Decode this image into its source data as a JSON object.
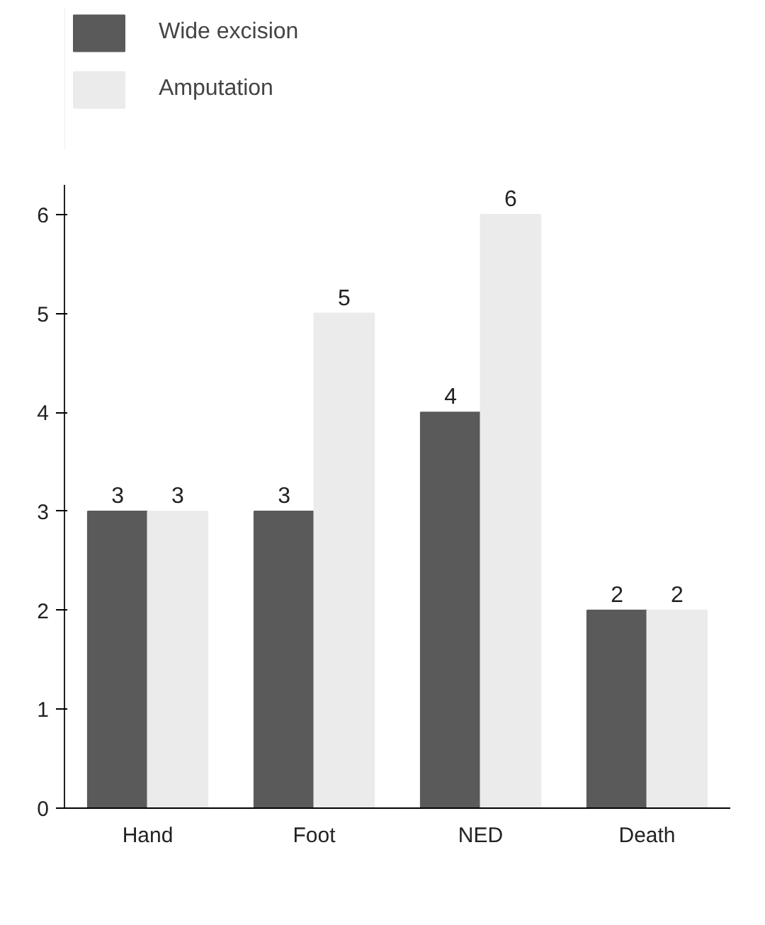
{
  "chart_data": {
    "type": "bar",
    "categories": [
      "Hand",
      "Foot",
      "NED",
      "Death"
    ],
    "series": [
      {
        "name": "Wide excision",
        "color": "#5a5a5a",
        "values": [
          3,
          3,
          4,
          2
        ]
      },
      {
        "name": "Amputation",
        "color": "#ebebeb",
        "values": [
          3,
          5,
          6,
          2
        ]
      }
    ],
    "ylim": [
      0,
      6.3
    ],
    "yticks": [
      0,
      1,
      2,
      3,
      4,
      5,
      6
    ],
    "data_labels": true,
    "legend": "top left",
    "grid": false
  }
}
